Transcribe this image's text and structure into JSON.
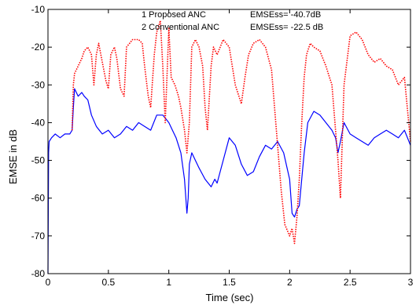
{
  "chart_data": {
    "type": "line",
    "title": "",
    "xlabel": "Time (sec)",
    "ylabel": "EMSE in dB",
    "xlim": [
      0,
      3
    ],
    "ylim": [
      -80,
      -10
    ],
    "xticks": [
      0,
      0.5,
      1,
      1.5,
      2,
      2.5,
      3
    ],
    "xtick_labels": [
      "0",
      "0.5",
      "1",
      "1.5",
      "2",
      "2.5",
      "3"
    ],
    "yticks": [
      -80,
      -70,
      -60,
      -50,
      -40,
      -30,
      -20,
      -10
    ],
    "ytick_labels": [
      "-80",
      "-70",
      "-60",
      "-50",
      "-40",
      "-30",
      "-20",
      "-10"
    ],
    "grid": false,
    "legend_position": "top-center",
    "legend": [
      {
        "line1": "1 Proposed ANC",
        "line2": "EMSEss= -40.7dB"
      },
      {
        "line1": "2 Conventional ANC",
        "line2": "EMSEss= -22.5 dB"
      }
    ],
    "series": [
      {
        "color": "#0000ff",
        "style": "solid",
        "x": [
          0,
          0.005,
          0.01,
          0.03,
          0.06,
          0.1,
          0.14,
          0.18,
          0.2,
          0.21,
          0.22,
          0.25,
          0.28,
          0.3,
          0.33,
          0.36,
          0.4,
          0.45,
          0.5,
          0.55,
          0.6,
          0.65,
          0.7,
          0.75,
          0.8,
          0.85,
          0.9,
          0.95,
          1.0,
          1.03,
          1.06,
          1.1,
          1.13,
          1.15,
          1.16,
          1.17,
          1.19,
          1.22,
          1.25,
          1.3,
          1.35,
          1.38,
          1.4,
          1.45,
          1.5,
          1.55,
          1.6,
          1.65,
          1.7,
          1.75,
          1.8,
          1.85,
          1.9,
          1.95,
          2.0,
          2.02,
          2.04,
          2.06,
          2.08,
          2.1,
          2.12,
          2.15,
          2.2,
          2.25,
          2.3,
          2.35,
          2.38,
          2.4,
          2.42,
          2.45,
          2.5,
          2.55,
          2.6,
          2.65,
          2.7,
          2.75,
          2.8,
          2.85,
          2.9,
          2.95,
          3.0
        ],
        "y": [
          -80,
          -48,
          -45,
          -44,
          -43,
          -44,
          -43,
          -43,
          -42,
          -36,
          -31,
          -33,
          -32,
          -33,
          -34,
          -38,
          -41,
          -43,
          -42,
          -44,
          -43,
          -41,
          -42,
          -40,
          -41,
          -42,
          -38,
          -38,
          -40,
          -42,
          -44,
          -48,
          -55,
          -64,
          -60,
          -51,
          -48,
          -50,
          -52,
          -55,
          -57,
          -55,
          -56,
          -50,
          -44,
          -46,
          -51,
          -54,
          -53,
          -49,
          -46,
          -47,
          -45,
          -48,
          -55,
          -64,
          -65,
          -63,
          -62,
          -55,
          -48,
          -40,
          -37,
          -38,
          -40,
          -42,
          -44,
          -48,
          -45,
          -40,
          -43,
          -44,
          -45,
          -46,
          -44,
          -43,
          -42,
          -43,
          -44,
          -42,
          -46
        ]
      },
      {
        "color": "#ff0000",
        "style": "dotted",
        "x": [
          0.2,
          0.21,
          0.22,
          0.25,
          0.28,
          0.3,
          0.33,
          0.36,
          0.38,
          0.4,
          0.42,
          0.45,
          0.48,
          0.5,
          0.52,
          0.55,
          0.57,
          0.6,
          0.63,
          0.65,
          0.7,
          0.75,
          0.78,
          0.8,
          0.83,
          0.85,
          0.88,
          0.9,
          0.93,
          0.95,
          0.97,
          1.0,
          1.02,
          1.05,
          1.08,
          1.1,
          1.13,
          1.15,
          1.17,
          1.19,
          1.22,
          1.25,
          1.28,
          1.3,
          1.32,
          1.35,
          1.37,
          1.4,
          1.45,
          1.5,
          1.55,
          1.6,
          1.63,
          1.66,
          1.7,
          1.75,
          1.8,
          1.85,
          1.88,
          1.9,
          1.93,
          1.96,
          2.0,
          2.02,
          2.04,
          2.06,
          2.08,
          2.1,
          2.12,
          2.14,
          2.17,
          2.2,
          2.25,
          2.3,
          2.35,
          2.38,
          2.4,
          2.42,
          2.45,
          2.5,
          2.55,
          2.6,
          2.65,
          2.7,
          2.75,
          2.8,
          2.85,
          2.9,
          2.95,
          3.0
        ],
        "y": [
          -42,
          -30,
          -27,
          -25,
          -23,
          -21,
          -20,
          -22,
          -30,
          -22,
          -19,
          -24,
          -29,
          -31,
          -22,
          -20,
          -23,
          -31,
          -33,
          -20,
          -18,
          -18,
          -19,
          -25,
          -33,
          -36,
          -22,
          -16,
          -13,
          -25,
          -40,
          -15,
          -28,
          -30,
          -33,
          -36,
          -42,
          -48,
          -40,
          -20,
          -18,
          -20,
          -25,
          -36,
          -42,
          -25,
          -20,
          -22,
          -18,
          -20,
          -30,
          -35,
          -28,
          -22,
          -19,
          -18,
          -20,
          -26,
          -38,
          -46,
          -58,
          -67,
          -70,
          -68,
          -72,
          -65,
          -55,
          -40,
          -28,
          -22,
          -19,
          -20,
          -21,
          -25,
          -30,
          -42,
          -50,
          -60,
          -30,
          -17,
          -16,
          -18,
          -22,
          -24,
          -23,
          -25,
          -26,
          -30,
          -28,
          -45
        ]
      }
    ]
  }
}
